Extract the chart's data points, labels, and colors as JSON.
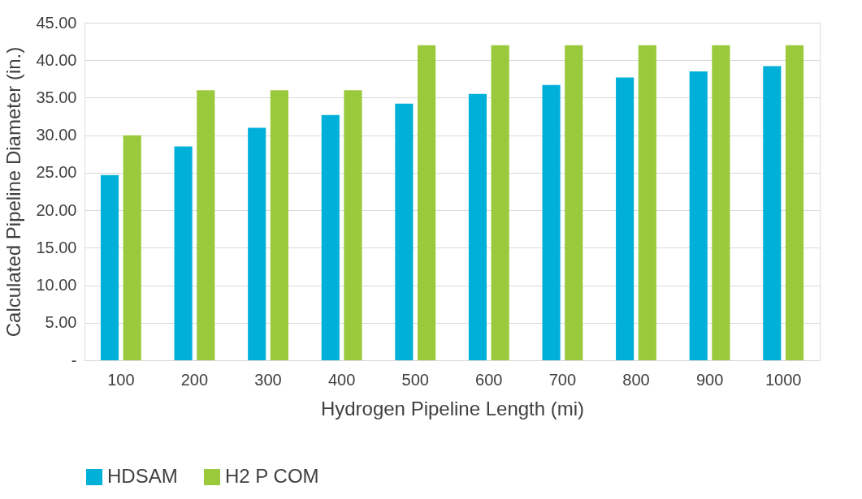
{
  "chart_data": {
    "type": "bar",
    "xlabel": "Hydrogen Pipeline Length (mi)",
    "ylabel": "Calculated Pipeline Diameter (in.)",
    "categories": [
      "100",
      "200",
      "300",
      "400",
      "500",
      "600",
      "700",
      "800",
      "900",
      "1000"
    ],
    "series": [
      {
        "name": "HDSAM",
        "color": "#00b0d8",
        "values": [
          24.7,
          28.5,
          31.0,
          32.7,
          34.2,
          35.5,
          36.7,
          37.7,
          38.5,
          39.2
        ]
      },
      {
        "name": "H2 P COM",
        "color": "#9bc93c",
        "values": [
          30,
          36,
          36,
          36,
          42,
          42,
          42,
          42,
          42,
          42
        ]
      }
    ],
    "ylim": [
      0,
      45
    ],
    "yticks": [
      {
        "value": 0,
        "label": "-"
      },
      {
        "value": 5,
        "label": "5.00"
      },
      {
        "value": 10,
        "label": "10.00"
      },
      {
        "value": 15,
        "label": "15.00"
      },
      {
        "value": 20,
        "label": "20.00"
      },
      {
        "value": 25,
        "label": "25.00"
      },
      {
        "value": 30,
        "label": "30.00"
      },
      {
        "value": 35,
        "label": "35.00"
      },
      {
        "value": 40,
        "label": "40.00"
      },
      {
        "value": 45,
        "label": "45.00"
      }
    ],
    "grid": "y",
    "legend": "bottom"
  }
}
